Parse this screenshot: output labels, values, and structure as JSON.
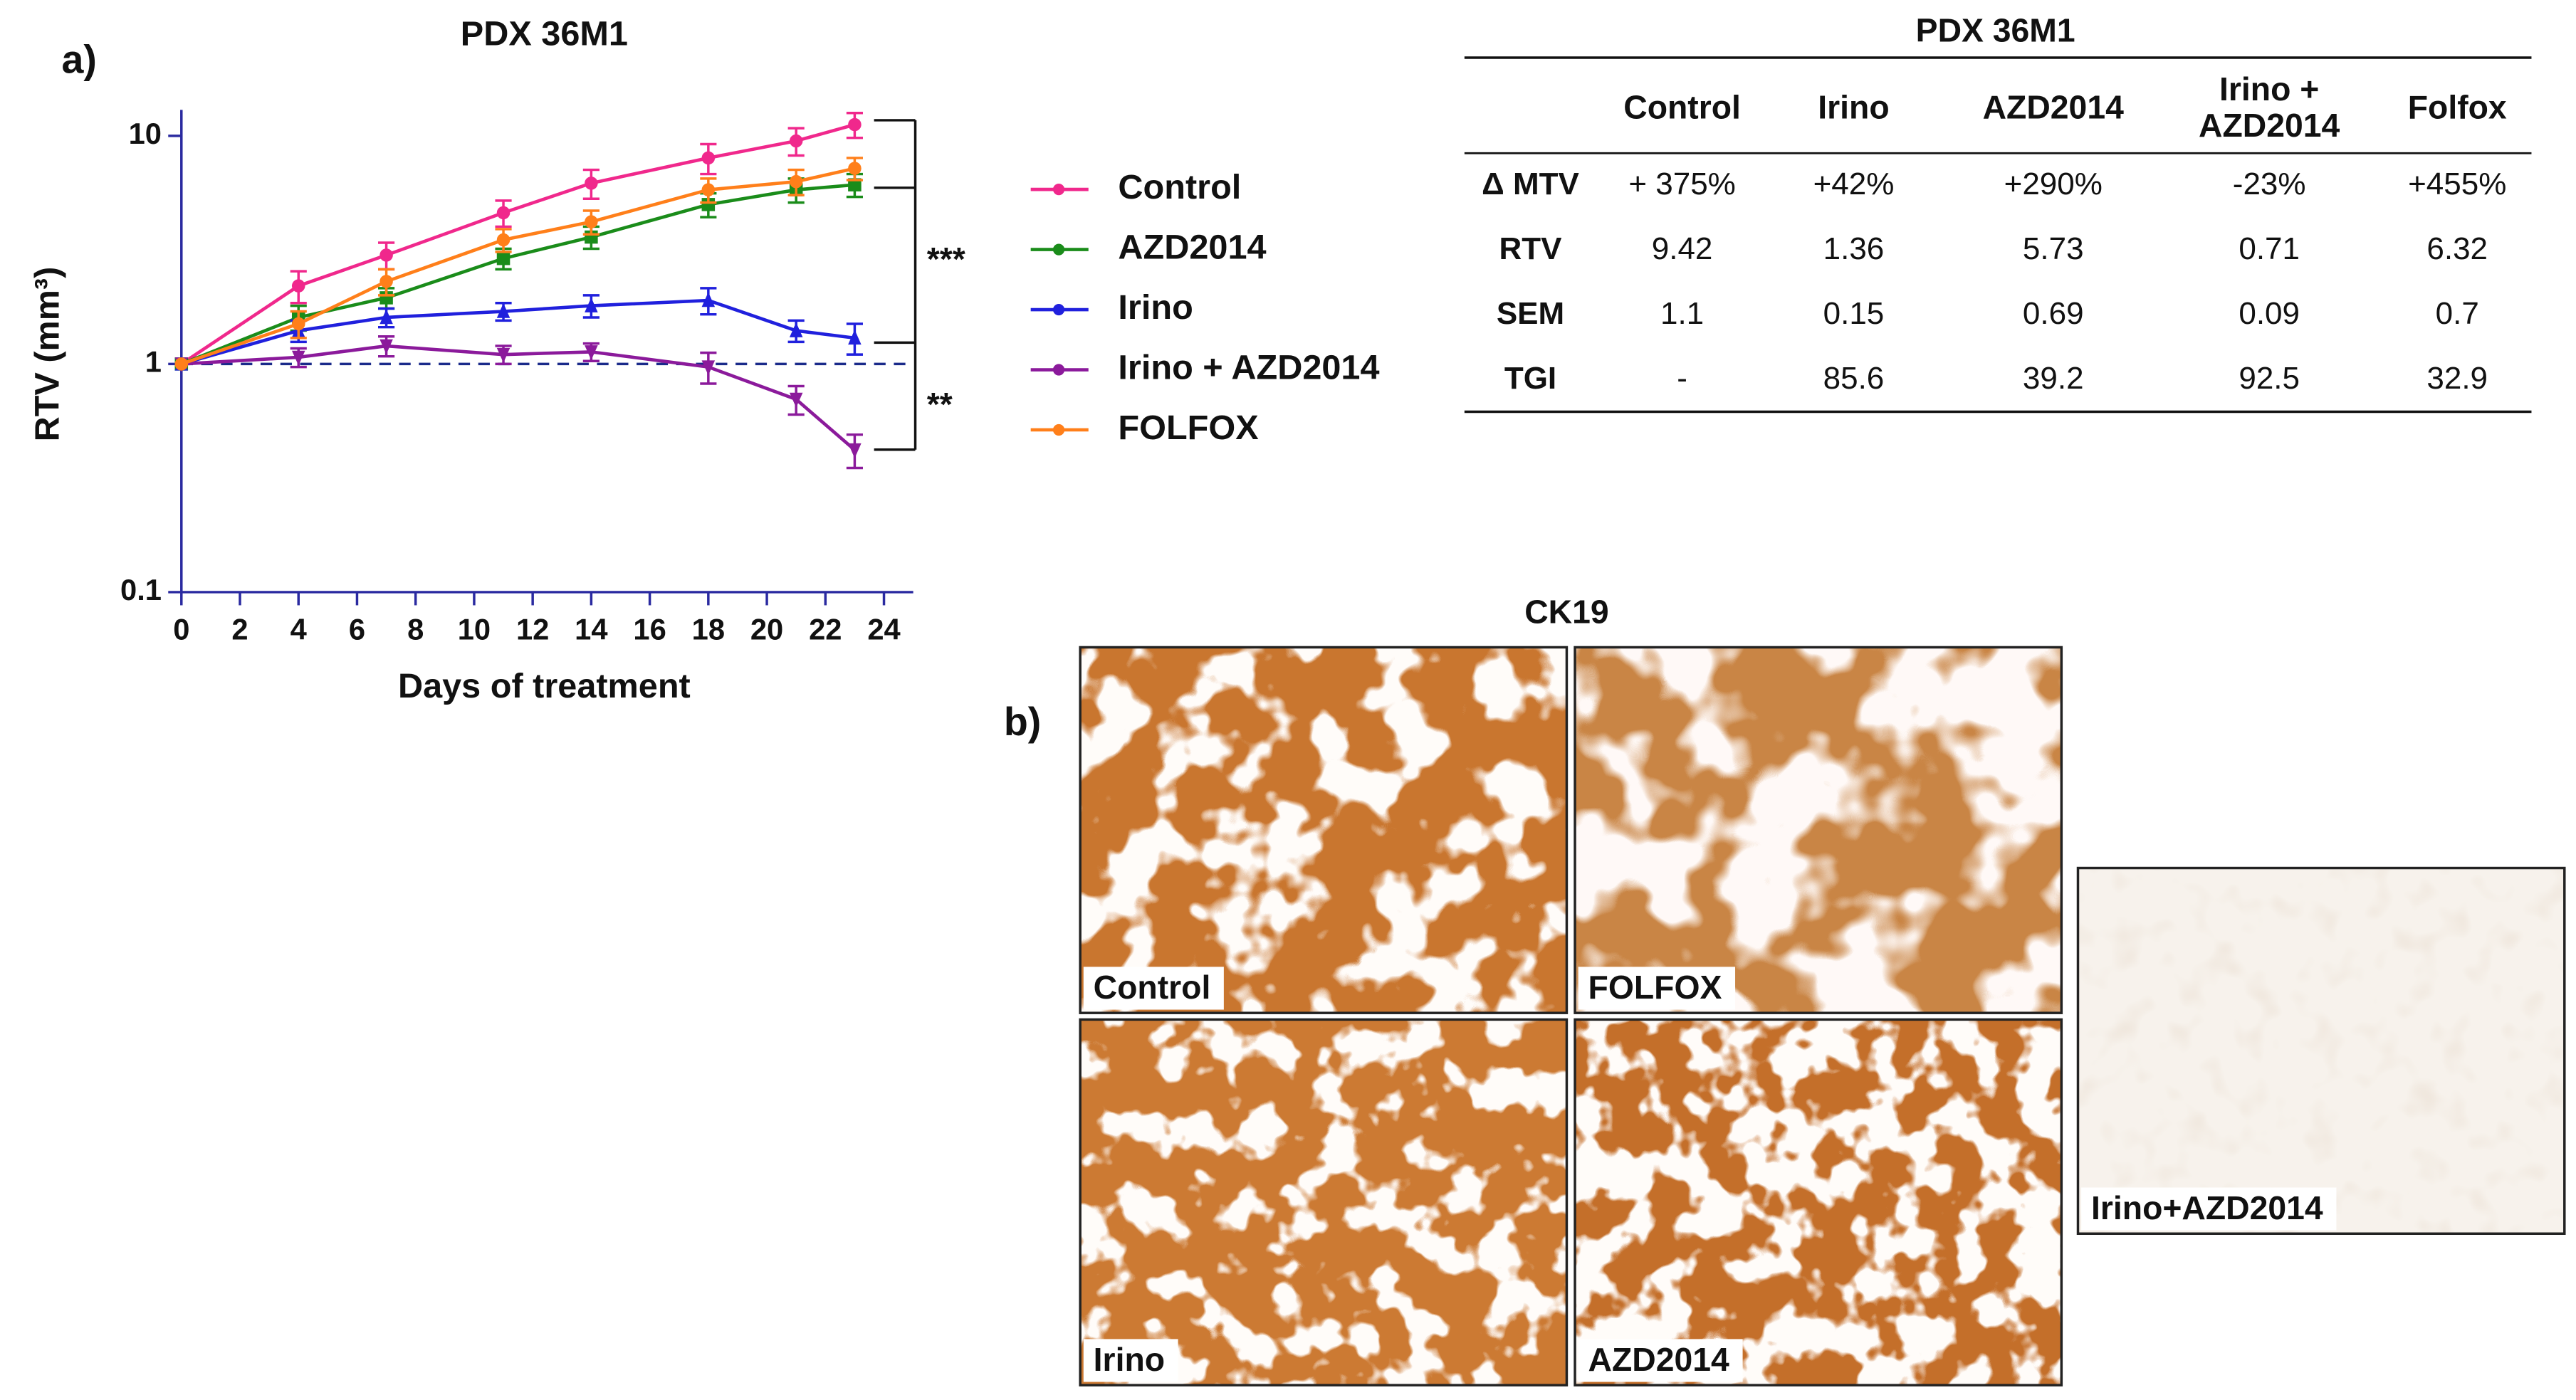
{
  "panel_labels": [
    "a)",
    "b)"
  ],
  "chart_data": {
    "type": "line",
    "title": "PDX 36M1",
    "xlabel": "Days of treatment",
    "ylabel": "RTV (mm³)",
    "x": [
      0,
      4,
      7,
      11,
      14,
      18,
      21,
      23
    ],
    "series": [
      {
        "name": "Control",
        "color": "#f0288c",
        "marker": "circle",
        "values": [
          1,
          2.2,
          3.0,
          4.6,
          6.2,
          8.0,
          9.5,
          11.2
        ],
        "errors": [
          0,
          0.35,
          0.4,
          0.6,
          0.9,
          1.2,
          1.3,
          1.4
        ]
      },
      {
        "name": "AZD2014",
        "color": "#1a8c1a",
        "marker": "square",
        "values": [
          1,
          1.6,
          1.95,
          2.9,
          3.6,
          5.0,
          5.8,
          6.1
        ],
        "errors": [
          0,
          0.2,
          0.2,
          0.3,
          0.4,
          0.6,
          0.7,
          0.7
        ]
      },
      {
        "name": "Irino",
        "color": "#2020dd",
        "marker": "triangle",
        "values": [
          1,
          1.4,
          1.6,
          1.7,
          1.8,
          1.9,
          1.4,
          1.3
        ],
        "errors": [
          0,
          0.15,
          0.15,
          0.15,
          0.2,
          0.25,
          0.15,
          0.2
        ]
      },
      {
        "name": "Irino + AZD2014",
        "color": "#8b1a9b",
        "marker": "triangle-down",
        "values": [
          1,
          1.07,
          1.2,
          1.1,
          1.13,
          0.97,
          0.7,
          0.42
        ],
        "errors": [
          0,
          0.1,
          0.12,
          0.1,
          0.1,
          0.15,
          0.1,
          0.07
        ]
      },
      {
        "name": "FOLFOX",
        "color": "#ff7f1a",
        "marker": "circle",
        "values": [
          1,
          1.5,
          2.3,
          3.5,
          4.2,
          5.8,
          6.3,
          7.2
        ],
        "errors": [
          0,
          0.2,
          0.3,
          0.4,
          0.5,
          0.7,
          0.8,
          0.8
        ]
      }
    ],
    "xlim": [
      0,
      25
    ],
    "xticks": [
      0,
      2,
      4,
      6,
      8,
      10,
      12,
      14,
      16,
      18,
      20,
      22,
      24
    ],
    "ylim": [
      0.1,
      13
    ],
    "yticks": [
      0.1,
      1,
      10
    ],
    "log_y": true,
    "reference_line": 1,
    "annotations": [
      "***",
      "**"
    ],
    "legend": "right"
  },
  "table": {
    "title": "PDX 36M1",
    "columns": [
      "Control",
      "Irino",
      "AZD2014",
      "Irino + AZD2014",
      "Folfox"
    ],
    "rows": [
      {
        "label": "Δ MTV",
        "cells": [
          "+ 375%",
          "+42%",
          "+290%",
          "-23%",
          "+455%"
        ]
      },
      {
        "label": "RTV",
        "cells": [
          "9.42",
          "1.36",
          "5.73",
          "0.71",
          "6.32"
        ]
      },
      {
        "label": "SEM",
        "cells": [
          "1.1",
          "0.15",
          "0.69",
          "0.09",
          "0.7"
        ]
      },
      {
        "label": "TGI",
        "cells": [
          "-",
          "85.6",
          "39.2",
          "92.5",
          "32.9"
        ]
      }
    ]
  },
  "images": {
    "title": "CK19",
    "panels": [
      {
        "label": "Control"
      },
      {
        "label": "FOLFOX"
      },
      {
        "label": "Irino"
      },
      {
        "label": "AZD2014"
      },
      {
        "label": "Irino+AZD2014"
      }
    ]
  }
}
